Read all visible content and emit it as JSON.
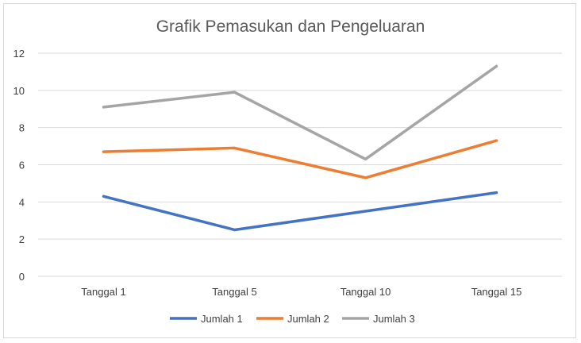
{
  "chart_data": {
    "type": "line",
    "title": "Grafik Pemasukan dan Pengeluaran",
    "xlabel": "",
    "ylabel": "",
    "categories": [
      "Tanggal 1",
      "Tanggal 5",
      "Tanggal 10",
      "Tanggal 15"
    ],
    "ylim": [
      0,
      12
    ],
    "yticks": [
      "0",
      "2",
      "4",
      "6",
      "8",
      "10",
      "12"
    ],
    "grid": "horizontal",
    "legend_position": "bottom",
    "series": [
      {
        "name": "Jumlah 1",
        "color": "#4472c4",
        "values": [
          4.3,
          2.5,
          3.5,
          4.5
        ]
      },
      {
        "name": "Jumlah 2",
        "color": "#ed7d31",
        "values": [
          6.7,
          6.9,
          5.3,
          7.3
        ]
      },
      {
        "name": "Jumlah 3",
        "color": "#a5a5a5",
        "values": [
          9.1,
          9.9,
          6.3,
          11.3
        ]
      }
    ]
  }
}
